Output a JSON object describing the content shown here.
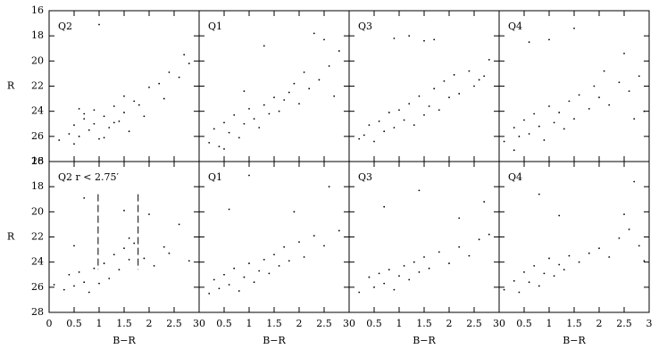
{
  "chart_data": [
    {
      "type": "scatter",
      "label": "Q2",
      "ylabel": "R",
      "xlim": [
        0,
        3
      ],
      "ylim": [
        28,
        16
      ],
      "xticks": [
        0,
        0.5,
        1,
        1.5,
        2,
        2.5,
        3
      ],
      "yticks": [
        16,
        18,
        20,
        22,
        24,
        26,
        28
      ],
      "xticklabels": false,
      "yticklabels": true,
      "color": "#000000",
      "x": [
        0.2,
        0.4,
        0.5,
        0.6,
        0.7,
        0.8,
        0.9,
        1.0,
        1.1,
        1.2,
        1.3,
        1.4,
        1.5,
        1.6,
        1.7,
        0.5,
        0.7,
        0.9,
        1.1,
        1.3,
        1.5,
        1.8,
        2.0,
        2.2,
        2.4,
        2.6,
        2.7,
        1.9,
        2.3,
        0.6,
        1.0,
        2.8
      ],
      "y": [
        26.3,
        25.8,
        25.1,
        26.0,
        24.6,
        25.5,
        23.9,
        26.2,
        24.4,
        25.3,
        23.6,
        24.8,
        24.1,
        25.6,
        23.2,
        26.6,
        24.2,
        25.0,
        26.1,
        24.9,
        22.8,
        23.5,
        22.1,
        21.8,
        20.9,
        21.3,
        19.5,
        24.4,
        23.0,
        23.8,
        17.1,
        20.2
      ]
    },
    {
      "type": "scatter",
      "label": "Q1",
      "xlim": [
        0,
        3
      ],
      "ylim": [
        28,
        16
      ],
      "xticks": [
        0,
        0.5,
        1,
        1.5,
        2,
        2.5,
        3
      ],
      "yticks": [
        16,
        18,
        20,
        22,
        24,
        26,
        28
      ],
      "xticklabels": false,
      "yticklabels": false,
      "color": "#000000",
      "x": [
        0.2,
        0.3,
        0.4,
        0.5,
        0.6,
        0.7,
        0.8,
        0.9,
        1.0,
        1.1,
        1.2,
        1.3,
        1.4,
        1.5,
        1.6,
        1.7,
        1.8,
        1.9,
        2.0,
        2.1,
        2.2,
        2.4,
        2.5,
        2.6,
        2.8,
        0.5,
        0.9,
        1.3,
        2.3,
        2.7
      ],
      "y": [
        26.5,
        25.4,
        26.8,
        24.9,
        25.7,
        24.3,
        26.1,
        25.0,
        23.8,
        24.6,
        25.3,
        23.5,
        24.2,
        22.9,
        24.0,
        23.1,
        22.5,
        21.8,
        23.4,
        20.9,
        22.2,
        21.5,
        18.3,
        20.4,
        19.2,
        27.0,
        22.4,
        18.8,
        17.8,
        22.8
      ]
    },
    {
      "type": "scatter",
      "label": "Q3",
      "xlim": [
        0,
        3
      ],
      "ylim": [
        28,
        16
      ],
      "xticks": [
        0,
        0.5,
        1,
        1.5,
        2,
        2.5,
        3
      ],
      "yticks": [
        16,
        18,
        20,
        22,
        24,
        26,
        28
      ],
      "xticklabels": false,
      "yticklabels": false,
      "color": "#000000",
      "x": [
        0.2,
        0.3,
        0.4,
        0.5,
        0.6,
        0.7,
        0.8,
        0.9,
        1.0,
        1.1,
        1.2,
        1.3,
        1.4,
        1.5,
        1.6,
        1.7,
        1.8,
        1.9,
        2.0,
        2.1,
        2.2,
        2.4,
        2.5,
        2.6,
        2.8,
        0.9,
        1.2,
        1.5,
        1.7,
        2.7
      ],
      "y": [
        26.2,
        25.9,
        25.1,
        26.4,
        24.8,
        25.6,
        24.1,
        25.3,
        23.9,
        24.7,
        23.4,
        25.1,
        22.8,
        24.3,
        23.6,
        22.2,
        23.9,
        21.6,
        22.9,
        21.1,
        22.6,
        20.8,
        22.0,
        21.5,
        19.9,
        18.2,
        18.0,
        18.4,
        18.3,
        21.2
      ]
    },
    {
      "type": "scatter",
      "label": "Q4",
      "xlim": [
        0,
        3
      ],
      "ylim": [
        28,
        16
      ],
      "xticks": [
        0,
        0.5,
        1,
        1.5,
        2,
        2.5,
        3
      ],
      "yticks": [
        16,
        18,
        20,
        22,
        24,
        26,
        28
      ],
      "xticklabels": false,
      "yticklabels": false,
      "color": "#000000",
      "x": [
        0.1,
        0.3,
        0.4,
        0.5,
        0.6,
        0.7,
        0.8,
        0.9,
        1.0,
        1.1,
        1.2,
        1.3,
        1.4,
        1.5,
        1.6,
        1.8,
        2.0,
        2.2,
        2.4,
        2.6,
        2.8,
        2.9,
        0.6,
        1.0,
        1.5,
        2.1,
        2.5,
        0.3,
        1.9,
        2.7
      ],
      "y": [
        26.4,
        25.3,
        26.0,
        24.7,
        25.8,
        24.2,
        25.2,
        26.3,
        23.6,
        24.9,
        24.1,
        25.4,
        23.2,
        24.6,
        22.7,
        23.8,
        22.9,
        23.5,
        21.7,
        22.4,
        21.2,
        24.0,
        18.5,
        18.3,
        17.4,
        20.8,
        19.4,
        27.1,
        22.0,
        24.6
      ]
    },
    {
      "type": "scatter",
      "label": "Q2  r < 2.75′",
      "ylabel": "R",
      "xlabel": "B−R",
      "xlim": [
        0,
        3
      ],
      "ylim": [
        28,
        16
      ],
      "xticks": [
        0,
        0.5,
        1,
        1.5,
        2,
        2.5,
        3
      ],
      "yticks": [
        16,
        18,
        20,
        22,
        24,
        26,
        28
      ],
      "xticklabels": true,
      "yticklabels": true,
      "color": "#000000",
      "vlines": [
        {
          "x": 0.98,
          "y": [
            18.6,
            24.6
          ]
        },
        {
          "x": 1.78,
          "y": [
            18.6,
            24.6
          ]
        }
      ],
      "x": [
        0.1,
        0.3,
        0.4,
        0.5,
        0.6,
        0.7,
        0.8,
        0.9,
        1.0,
        1.1,
        1.2,
        1.3,
        1.4,
        1.5,
        1.6,
        1.7,
        1.9,
        2.0,
        2.1,
        2.3,
        2.4,
        2.6,
        2.8,
        0.5,
        1.5,
        1.6,
        0.7
      ],
      "y": [
        25.8,
        26.2,
        25.0,
        25.9,
        24.8,
        25.6,
        26.4,
        24.5,
        25.7,
        24.1,
        25.3,
        23.4,
        24.6,
        22.9,
        23.8,
        22.5,
        23.7,
        20.2,
        24.3,
        22.8,
        23.3,
        21.0,
        23.9,
        22.7,
        19.9,
        22.1,
        18.9
      ]
    },
    {
      "type": "scatter",
      "label": "Q1",
      "xlabel": "B−R",
      "xlim": [
        0,
        3
      ],
      "ylim": [
        28,
        16
      ],
      "xticks": [
        0,
        0.5,
        1,
        1.5,
        2,
        2.5,
        3
      ],
      "yticks": [
        16,
        18,
        20,
        22,
        24,
        26,
        28
      ],
      "xticklabels": true,
      "yticklabels": false,
      "color": "#000000",
      "x": [
        0.2,
        0.3,
        0.4,
        0.5,
        0.6,
        0.7,
        0.8,
        0.9,
        1.0,
        1.1,
        1.2,
        1.3,
        1.4,
        1.5,
        1.6,
        1.7,
        1.8,
        2.0,
        2.1,
        2.3,
        2.5,
        2.6,
        2.8,
        0.6,
        1.0,
        1.9
      ],
      "y": [
        26.5,
        25.4,
        26.1,
        25.0,
        25.8,
        24.5,
        26.3,
        25.2,
        24.1,
        25.6,
        24.7,
        23.8,
        24.9,
        23.4,
        24.3,
        22.8,
        23.9,
        22.4,
        23.6,
        21.9,
        22.7,
        18.0,
        21.5,
        19.8,
        17.1,
        20.0
      ]
    },
    {
      "type": "scatter",
      "label": "Q3",
      "xlabel": "B−R",
      "xlim": [
        0,
        3
      ],
      "ylim": [
        28,
        16
      ],
      "xticks": [
        0,
        0.5,
        1,
        1.5,
        2,
        2.5,
        3
      ],
      "yticks": [
        16,
        18,
        20,
        22,
        24,
        26,
        28
      ],
      "xticklabels": true,
      "yticklabels": false,
      "color": "#000000",
      "x": [
        0.2,
        0.4,
        0.5,
        0.6,
        0.7,
        0.8,
        0.9,
        1.0,
        1.1,
        1.2,
        1.3,
        1.4,
        1.5,
        1.6,
        1.8,
        2.0,
        2.2,
        2.4,
        2.6,
        2.8,
        0.7,
        1.4,
        2.7,
        2.2
      ],
      "y": [
        26.4,
        25.2,
        26.0,
        24.9,
        25.7,
        24.6,
        26.2,
        25.1,
        24.3,
        25.4,
        24.0,
        24.8,
        23.6,
        24.5,
        23.2,
        24.1,
        22.8,
        23.5,
        22.2,
        21.8,
        19.6,
        18.3,
        19.2,
        20.5
      ]
    },
    {
      "type": "scatter",
      "label": "Q4",
      "xlabel": "B−R",
      "xlim": [
        0,
        3
      ],
      "ylim": [
        28,
        16
      ],
      "xticks": [
        0,
        0.5,
        1,
        1.5,
        2,
        2.5,
        3
      ],
      "yticks": [
        16,
        18,
        20,
        22,
        24,
        26,
        28
      ],
      "xticklabels": true,
      "yticklabels": false,
      "color": "#000000",
      "x": [
        0.1,
        0.3,
        0.4,
        0.5,
        0.6,
        0.7,
        0.8,
        0.9,
        1.0,
        1.1,
        1.2,
        1.3,
        1.4,
        1.6,
        1.8,
        2.0,
        2.2,
        2.4,
        2.6,
        2.8,
        2.9,
        0.8,
        1.2,
        2.5,
        2.7
      ],
      "y": [
        26.2,
        25.5,
        26.4,
        24.8,
        25.6,
        24.3,
        25.9,
        24.9,
        23.7,
        25.1,
        24.2,
        24.6,
        23.5,
        24.0,
        23.3,
        22.9,
        23.6,
        22.1,
        21.4,
        22.7,
        23.9,
        18.6,
        20.3,
        20.2,
        17.6
      ]
    }
  ]
}
